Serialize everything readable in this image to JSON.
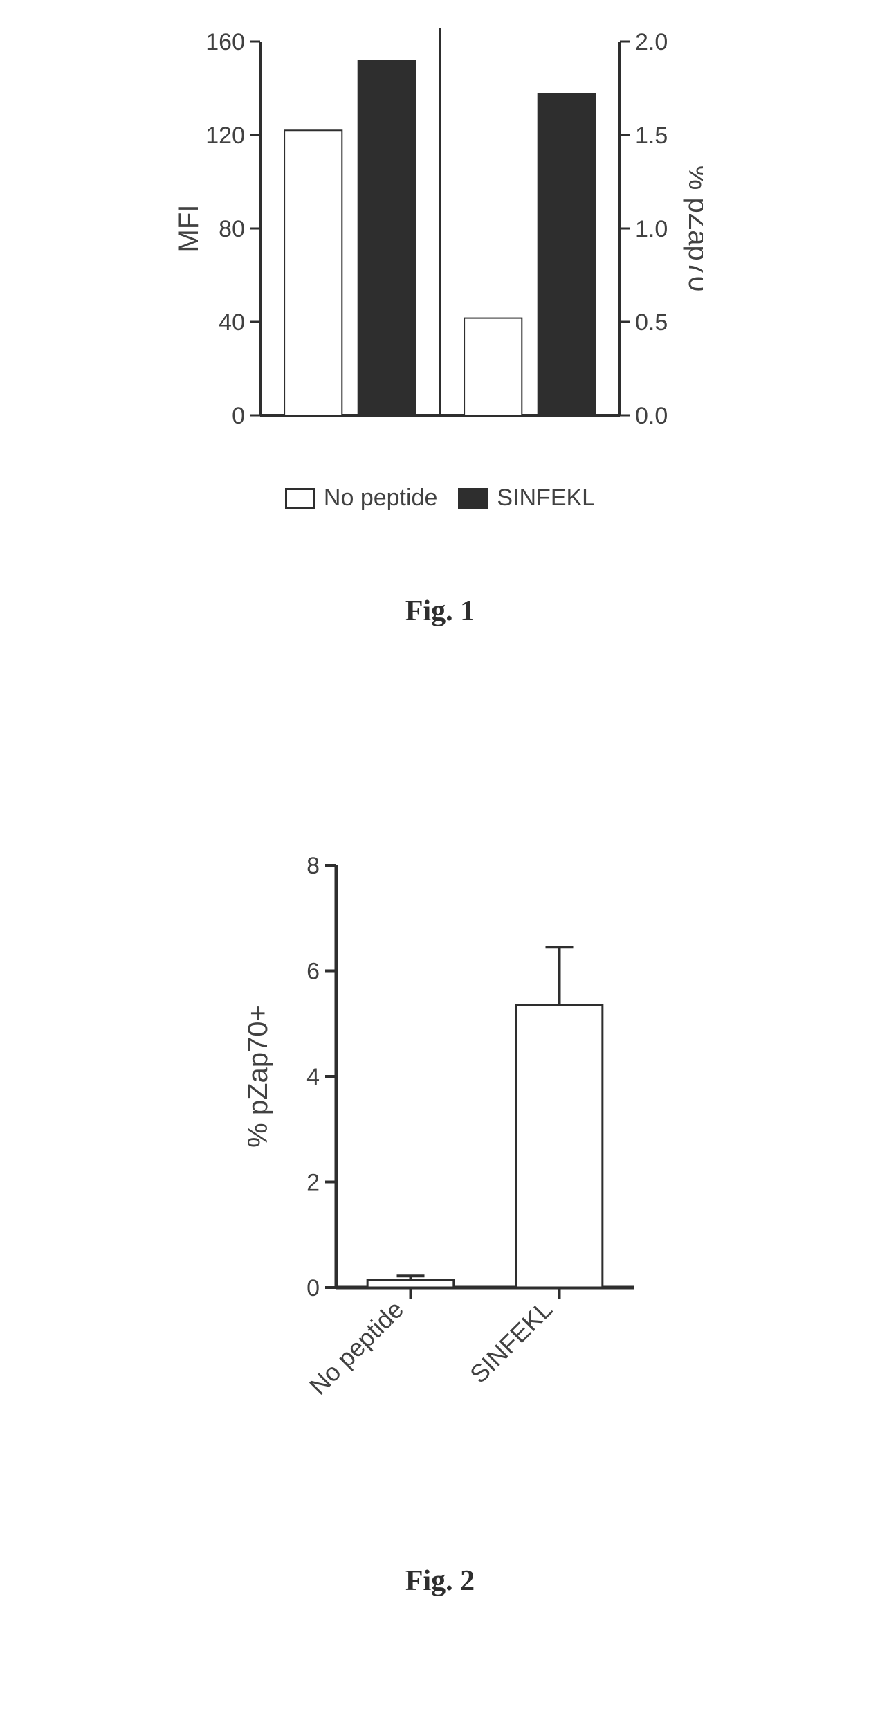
{
  "fig1": {
    "caption": "Fig. 1",
    "type": "bar-dual-axis",
    "background_color": "#ffffff",
    "axis_color": "#2e2e2e",
    "tick_color": "#2e2e2e",
    "text_color": "#414141",
    "tick_fontsize": 34,
    "label_fontsize": 40,
    "axis_line_width": 4,
    "tick_line_width": 3,
    "bar_border_width": 2,
    "left": {
      "label": "MFI",
      "ylim": [
        0,
        160
      ],
      "yticks": [
        0,
        40,
        80,
        120,
        160
      ],
      "bars": [
        {
          "value": 122,
          "fill": "#ffffff",
          "border": "#2e2e2e"
        },
        {
          "value": 152,
          "fill": "#2e2e2e",
          "border": "#2e2e2e"
        }
      ]
    },
    "right": {
      "label": "% pZap70",
      "ylim": [
        0.0,
        2.0
      ],
      "yticks": [
        0.0,
        0.5,
        1.0,
        1.5,
        2.0
      ],
      "bars": [
        {
          "value": 0.52,
          "fill": "#ffffff",
          "border": "#2e2e2e"
        },
        {
          "value": 1.72,
          "fill": "#2e2e2e",
          "border": "#2e2e2e"
        }
      ]
    },
    "legend": {
      "items": [
        {
          "swatch_fill": "#ffffff",
          "swatch_border": "#2e2e2e",
          "label": "No peptide"
        },
        {
          "swatch_fill": "#2e2e2e",
          "swatch_border": "#2e2e2e",
          "label": "SINFEKL"
        }
      ],
      "fontsize": 34
    }
  },
  "fig2": {
    "caption": "Fig. 2",
    "type": "bar-with-error",
    "background_color": "#ffffff",
    "axis_color": "#2e2e2e",
    "tick_color": "#2e2e2e",
    "text_color": "#414141",
    "tick_fontsize": 34,
    "label_fontsize": 40,
    "axis_line_width": 5,
    "tick_line_width": 4,
    "bar_border_width": 3,
    "y": {
      "label": "% pZap70+",
      "ylim": [
        0,
        8
      ],
      "yticks": [
        0,
        2,
        4,
        6,
        8
      ]
    },
    "categories": [
      "No peptide",
      "SINFEKL"
    ],
    "bars": [
      {
        "value": 0.15,
        "error": 0.07,
        "fill": "#ffffff",
        "border": "#2e2e2e"
      },
      {
        "value": 5.35,
        "error": 1.1,
        "fill": "#ffffff",
        "border": "#2e2e2e"
      }
    ],
    "error_cap_width": 20,
    "error_line_width": 4
  }
}
